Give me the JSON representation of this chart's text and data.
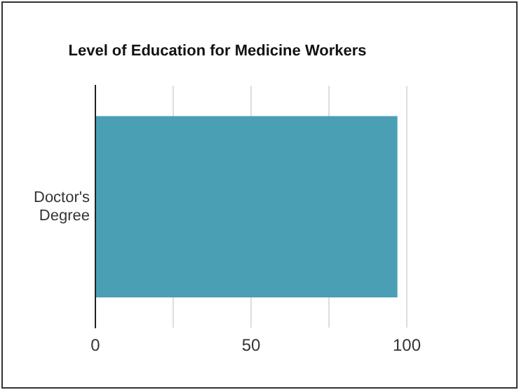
{
  "chart_data": {
    "type": "bar",
    "orientation": "horizontal",
    "title": "Level of Education for Medicine Workers",
    "categories": [
      "Doctor's Degree"
    ],
    "values": [
      97
    ],
    "color": "#4a9fb5",
    "xlim": [
      0,
      100
    ],
    "xticks": [
      0,
      {
        "value": 25,
        "label": null
      },
      50,
      {
        "value": 75,
        "label": null
      },
      100
    ],
    "grid": "x",
    "legend": false
  }
}
